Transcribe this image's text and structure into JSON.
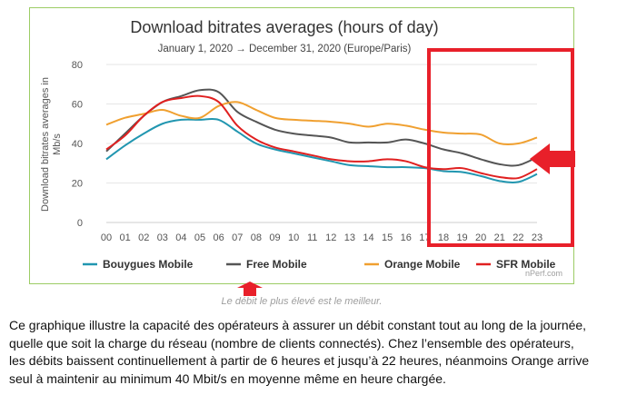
{
  "chart_data": {
    "type": "line",
    "title": "Download bitrates averages (hours of day)",
    "subtitle": "January 1, 2020 → December 31, 2020 (Europe/Paris)",
    "ylabel": "Download bitrates averages in Mb/s",
    "xlabel": "",
    "ylim": [
      0,
      80
    ],
    "yticks": [
      0,
      20,
      40,
      60,
      80
    ],
    "grid": true,
    "legend_position": "bottom",
    "categories": [
      "00",
      "01",
      "02",
      "03",
      "04",
      "05",
      "06",
      "07",
      "08",
      "09",
      "10",
      "11",
      "12",
      "13",
      "14",
      "15",
      "16",
      "17",
      "18",
      "19",
      "20",
      "21",
      "22",
      "23"
    ],
    "series": [
      {
        "name": "Bouygues Mobile",
        "color": "#2196b0",
        "values": [
          32,
          39,
          45,
          50,
          52,
          52,
          52,
          46,
          40,
          37,
          35,
          33,
          31,
          29,
          28.5,
          28,
          28,
          27.5,
          26,
          25.5,
          23.5,
          21,
          20.5,
          24.5
        ]
      },
      {
        "name": "Free Mobile",
        "color": "#555555",
        "values": [
          36,
          45,
          54,
          61,
          64,
          67,
          66,
          56,
          51,
          47,
          45,
          44,
          43,
          40.5,
          40.5,
          40.5,
          42,
          40,
          37,
          35,
          32,
          29.5,
          29,
          33
        ]
      },
      {
        "name": "Orange Mobile",
        "color": "#f0a030",
        "values": [
          49.5,
          53,
          55,
          57,
          54,
          53,
          59,
          61,
          57,
          53,
          52,
          51.5,
          51,
          50,
          48.5,
          50,
          49,
          47,
          45.5,
          45,
          44.5,
          40,
          40,
          43
        ]
      },
      {
        "name": "SFR Mobile",
        "color": "#e02020",
        "values": [
          37,
          44,
          54,
          61,
          63,
          64,
          61,
          49,
          42,
          38,
          36,
          34,
          32,
          31,
          31,
          32,
          31,
          28,
          27,
          27.5,
          25,
          23,
          22.5,
          27
        ]
      }
    ],
    "source": "nPerf.com"
  },
  "caption": "Le débit le plus élevé est le meilleur.",
  "paragraph": "Ce graphique illustre la capacité des opérateurs à assurer un débit constant tout au long de la journée, quelle que soit la charge du réseau (nombre de clients connectés). Chez l’ensemble des opérateurs, les débits baissent continuellement à partir de 6 heures et jusqu’à 22 heures, néanmoins Orange arrive seul à maintenir au minimum 40 Mbit/s en moyenne même en heure chargée.",
  "annotation_colors": {
    "highlight": "#e8202a"
  }
}
